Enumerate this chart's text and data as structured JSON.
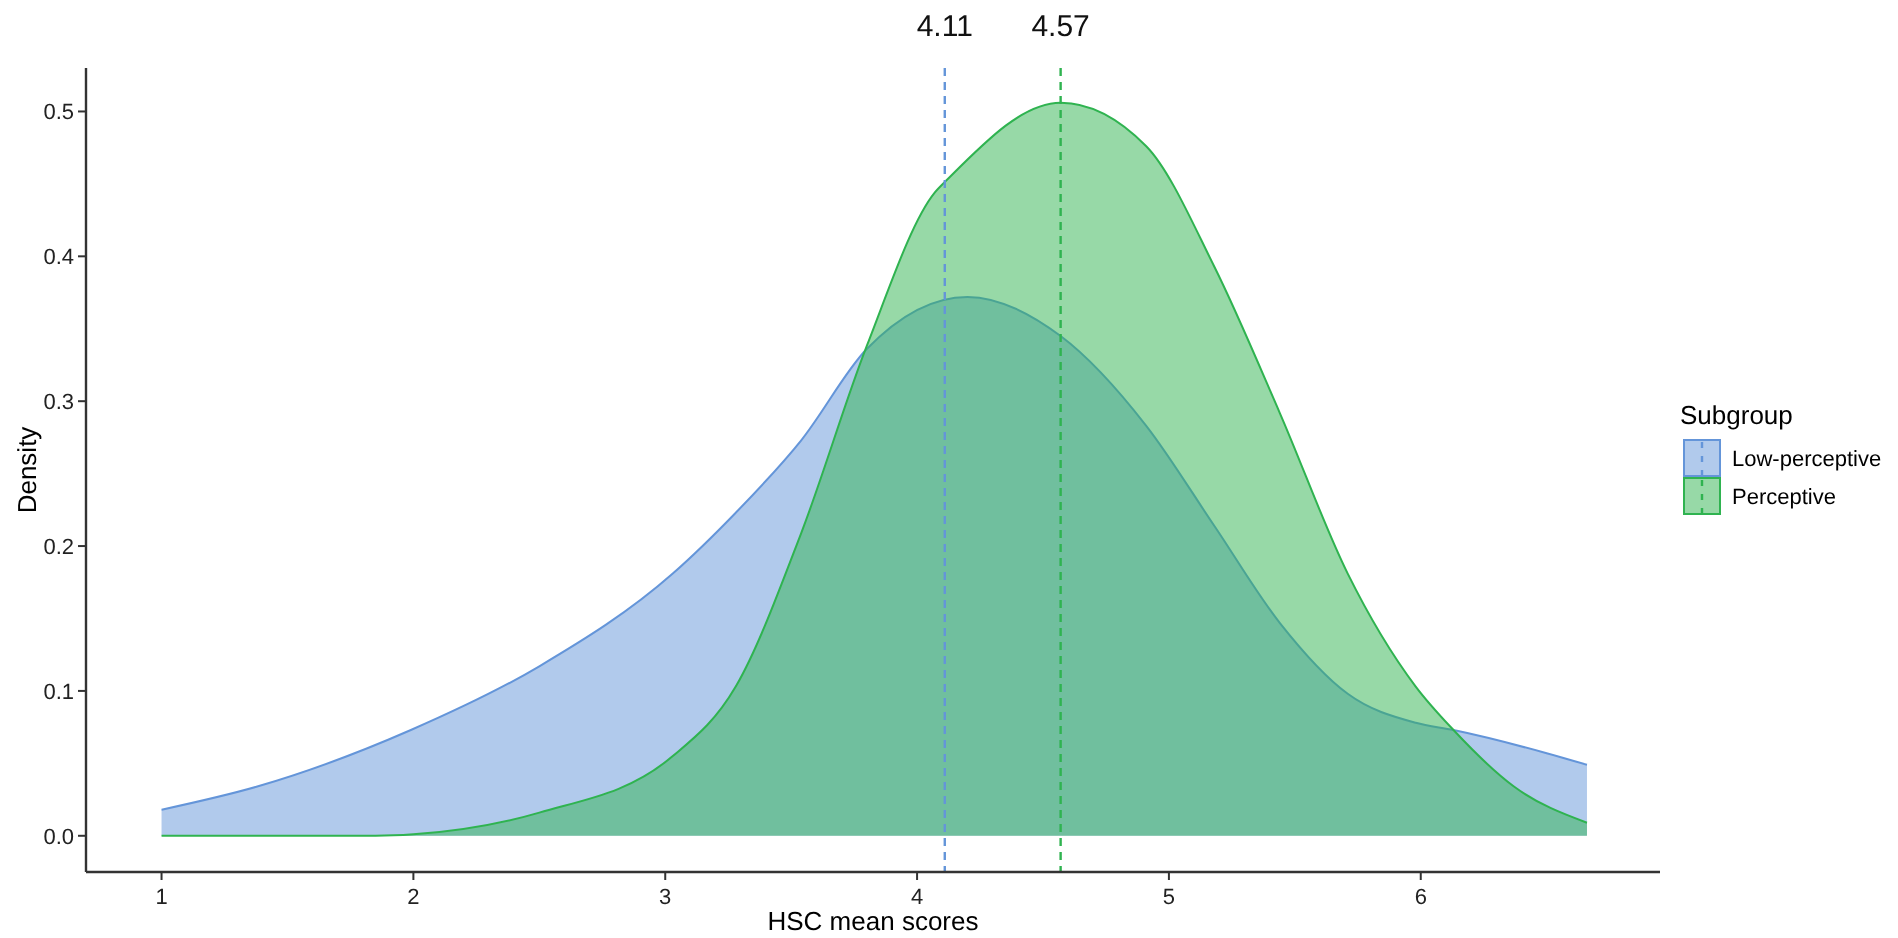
{
  "chart_data": {
    "type": "area",
    "xlabel": "HSC mean scores",
    "ylabel": "Density",
    "legend_title": "Subgroup",
    "legend": "right",
    "grid": false,
    "line_style": "solid",
    "xlim": [
      0.7,
      6.95
    ],
    "ylim": [
      -0.025,
      0.53
    ],
    "xticks": [
      1,
      2,
      3,
      4,
      5,
      6
    ],
    "yticks": [
      {
        "value": 0,
        "label": "0.0"
      },
      {
        "value": 0.1,
        "label": "0.1"
      },
      {
        "value": 0.2,
        "label": "0.2"
      },
      {
        "value": 0.3,
        "label": "0.3"
      },
      {
        "value": 0.4,
        "label": "0.4"
      },
      {
        "value": 0.5,
        "label": "0.5"
      }
    ],
    "series": [
      {
        "name": "Low-perceptive",
        "color": "#6495d9",
        "x": [
          1,
          1.38,
          1.99,
          2.5,
          3.03,
          3.28,
          3.54,
          3.8,
          4.2,
          4.57,
          4.91,
          5.18,
          5.44,
          5.71,
          5.98,
          6.13,
          6.5,
          6.66
        ],
        "values": [
          0.018,
          0.034,
          0.073,
          0.117,
          0.181,
          0.223,
          0.273,
          0.336,
          0.372,
          0.345,
          0.283,
          0.214,
          0.147,
          0.098,
          0.078,
          0.073,
          0.057,
          0.049
        ]
      },
      {
        "name": "Perceptive",
        "color": "#2fb350",
        "x": [
          1,
          1.85,
          2,
          2.5,
          3.03,
          3.28,
          3.54,
          3.8,
          4.07,
          4.12,
          4.57,
          4.91,
          5.18,
          5.44,
          5.71,
          5.98,
          6.13,
          6.37,
          6.66
        ],
        "values": [
          0,
          0,
          0.001,
          0.016,
          0.055,
          0.103,
          0.209,
          0.338,
          0.444,
          0.453,
          0.506,
          0.476,
          0.393,
          0.292,
          0.181,
          0.103,
          0.073,
          0.034,
          0.009
        ]
      }
    ],
    "ref_lines": [
      {
        "axis": "x",
        "value": 4.11,
        "label": "4.11",
        "color": "#6495d9",
        "line_style": "dashed"
      },
      {
        "axis": "x",
        "value": 4.57,
        "label": "4.57",
        "color": "#2fb350",
        "line_style": "dashed"
      }
    ]
  }
}
